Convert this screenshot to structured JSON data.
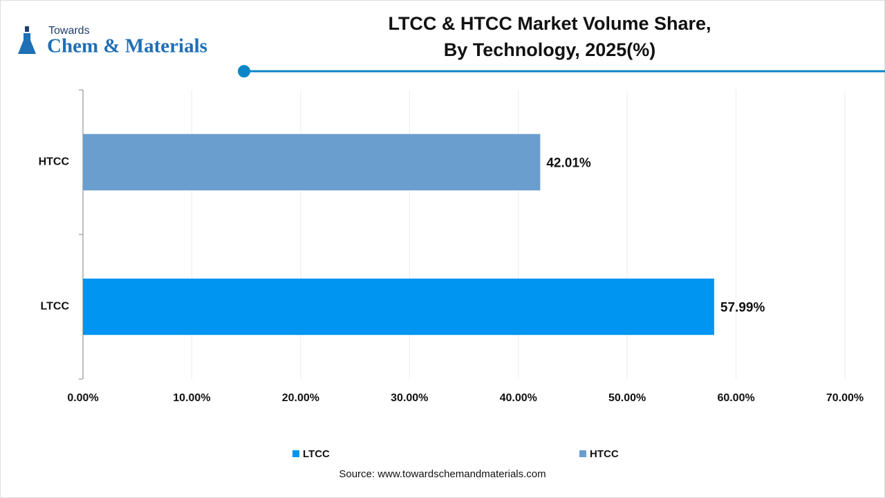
{
  "logo": {
    "top": "Towards",
    "bottom": "Chem & Materials"
  },
  "chart_data": {
    "type": "hbar",
    "title": [
      "LTCC & HTCC Market  Volume Share,",
      "By Technology, 2025(%)"
    ],
    "categories": [
      "LTCC",
      "HTCC"
    ],
    "values": [
      57.99,
      42.01
    ],
    "value_labels": [
      "57.99%",
      "42.01%"
    ],
    "colors": [
      "#0095f0",
      "#6a9ecf"
    ],
    "xlim": [
      0,
      70
    ],
    "xticks": [
      {
        "value": 0,
        "label": "0.00%"
      },
      {
        "value": 10,
        "label": "10.00%"
      },
      {
        "value": 20,
        "label": "20.00%"
      },
      {
        "value": 30,
        "label": "30.00%"
      },
      {
        "value": 40,
        "label": "40.00%"
      },
      {
        "value": 50,
        "label": "50.00%"
      },
      {
        "value": 60,
        "label": "60.00%"
      },
      {
        "value": 70,
        "label": "70.00%"
      }
    ],
    "grid": true,
    "legend": "bottom",
    "source": "Source: www.towardschemandmaterials.com"
  }
}
